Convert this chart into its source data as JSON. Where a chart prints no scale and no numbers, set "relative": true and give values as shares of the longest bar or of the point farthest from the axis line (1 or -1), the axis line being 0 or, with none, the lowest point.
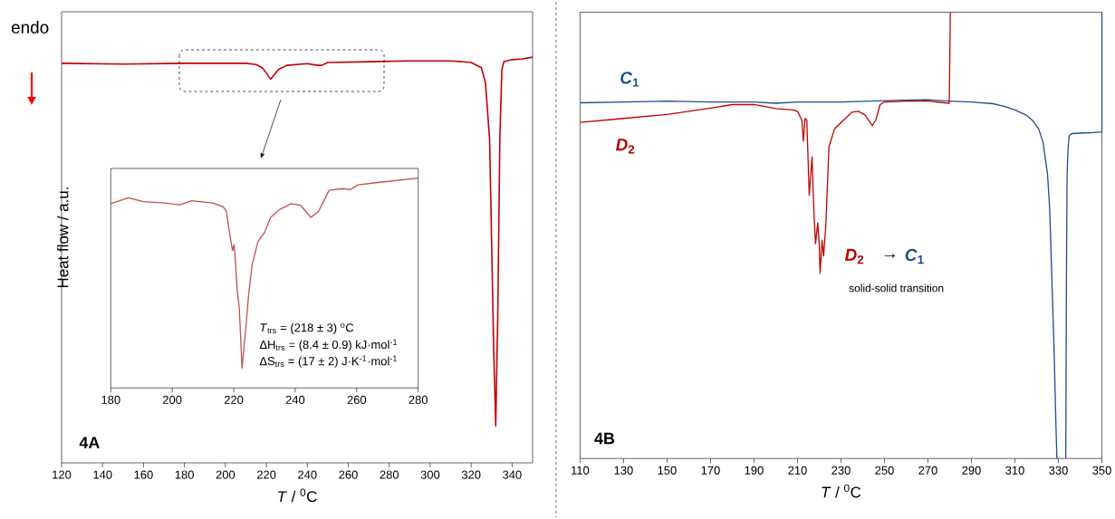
{
  "chart_data": [
    {
      "type": "line",
      "relative": true,
      "ylabel": "Heat flow / a.u.",
      "xlabel": "*T* / $^{0}$C",
      "xlim": [
        120,
        350
      ],
      "xticks": [
        120,
        140,
        160,
        180,
        200,
        220,
        240,
        260,
        280,
        300,
        320,
        340
      ],
      "tick_labels": "x",
      "grid": false,
      "legend": false,
      "annotations": [
        "endo",
        "4A"
      ],
      "series": [
        {
          "color": "#c00000",
          "x": [
            120,
            150,
            180,
            200,
            210,
            215,
            218,
            220,
            222,
            223,
            226,
            230,
            240,
            245,
            247,
            250,
            270,
            290,
            310,
            320,
            325,
            327,
            329,
            330,
            331,
            332,
            333,
            334,
            335,
            336,
            340,
            345,
            350
          ],
          "values": [
            0.985,
            0.983,
            0.985,
            0.985,
            0.985,
            0.982,
            0.974,
            0.961,
            0.946,
            0.951,
            0.97,
            0.98,
            0.984,
            0.98,
            0.98,
            0.987,
            0.989,
            0.991,
            0.991,
            0.987,
            0.974,
            0.936,
            0.798,
            0.54,
            0.282,
            0.091,
            0.368,
            0.798,
            0.97,
            0.989,
            0.994,
            0.996,
            1.0
          ]
        }
      ]
    },
    {
      "type": "line",
      "relative": true,
      "xlim": [
        180,
        280
      ],
      "xticks": [
        180,
        200,
        220,
        240,
        260,
        280
      ],
      "tick_labels": "x",
      "grid": false,
      "legend": false,
      "annotations": [
        "*T*$_{trs}$ = (218 ± 3) $^{o}$C",
        "ΔH$_{trs}$ = (8.4 ± 0.9) kJ·mol$^{-1}$",
        "ΔS$_{trs}$ = (17 ± 2) J·K$^{-1}$·mol$^{-1}$"
      ],
      "series": [
        {
          "color": "#c0504d",
          "x": [
            180,
            185.7,
            190.6,
            197.5,
            202.4,
            206.3,
            213.2,
            216.6,
            217.6,
            218.6,
            219.6,
            220.1,
            220.4,
            221.1,
            221.8,
            222.7,
            224.0,
            224.8,
            226,
            227.9,
            230,
            232,
            234.8,
            238.7,
            241.7,
            245.1,
            247.6,
            251,
            255.4,
            257.9,
            260.4,
            266.2,
            280
          ],
          "values": [
            0.878,
            0.906,
            0.888,
            0.881,
            0.873,
            0.892,
            0.881,
            0.863,
            0.842,
            0.741,
            0.655,
            0.683,
            0.64,
            0.468,
            0.381,
            0.094,
            0.295,
            0.439,
            0.59,
            0.698,
            0.741,
            0.813,
            0.849,
            0.878,
            0.871,
            0.813,
            0.842,
            0.942,
            0.95,
            0.945,
            0.968,
            0.978,
            1.0
          ]
        }
      ]
    },
    {
      "type": "line",
      "relative": true,
      "xlabel": "*T* / $^{0}$C",
      "xlim": [
        110,
        350
      ],
      "xticks": [
        110,
        130,
        150,
        170,
        190,
        210,
        230,
        250,
        270,
        290,
        310,
        330,
        350
      ],
      "tick_labels": "x",
      "grid": false,
      "legend": false,
      "annotations": [
        "*D*$_{2}$",
        "→",
        "*C*$_{1}$",
        "solid-solid transition",
        "4B"
      ],
      "series": [
        {
          "name": "*C*$_{1}$",
          "color": "#1f4e8c",
          "x": [
            110,
            130,
            150,
            170,
            190,
            200,
            210,
            230,
            250,
            270,
            280,
            290,
            300,
            305,
            310,
            315,
            318,
            321,
            323,
            325,
            326,
            327,
            328,
            329,
            329.3,
            331,
            333.4,
            333.7,
            334,
            334.5,
            335,
            336,
            340,
            345,
            350,
            350
          ],
          "values": [
            0.797,
            0.799,
            0.801,
            0.799,
            0.799,
            0.796,
            0.799,
            0.799,
            0.802,
            0.804,
            0.801,
            0.799,
            0.795,
            0.789,
            0.781,
            0.77,
            0.758,
            0.738,
            0.707,
            0.637,
            0.559,
            0.403,
            0.247,
            0.052,
            0,
            null,
            0,
            0.403,
            0.637,
            0.699,
            0.723,
            0.728,
            0.729,
            0.73,
            0.732,
            1.0
          ]
        },
        {
          "name": "*D*$_{2}$",
          "color": "#c00000",
          "x": [
            110,
            130,
            150,
            170,
            180,
            190,
            200,
            208,
            210,
            212,
            212.7,
            213.5,
            214.3,
            215.4,
            216.7,
            217.5,
            218.3,
            219.3,
            220,
            220.4,
            221.3,
            222,
            223,
            224.5,
            227,
            230.3,
            235,
            238,
            241,
            244.4,
            246,
            248,
            250,
            260,
            270,
            279.8,
            280.3
          ],
          "values": [
            0.753,
            0.762,
            0.771,
            0.785,
            0.793,
            0.793,
            0.784,
            0.781,
            0.778,
            0.758,
            0.711,
            0.762,
            0.758,
            0.59,
            0.676,
            0.559,
            0.481,
            0.528,
            0.481,
            0.415,
            0.489,
            0.454,
            0.52,
            0.699,
            0.738,
            0.754,
            0.776,
            0.778,
            0.77,
            0.746,
            0.758,
            0.793,
            0.799,
            0.801,
            0.801,
            0.796,
            1.0
          ]
        }
      ]
    }
  ]
}
